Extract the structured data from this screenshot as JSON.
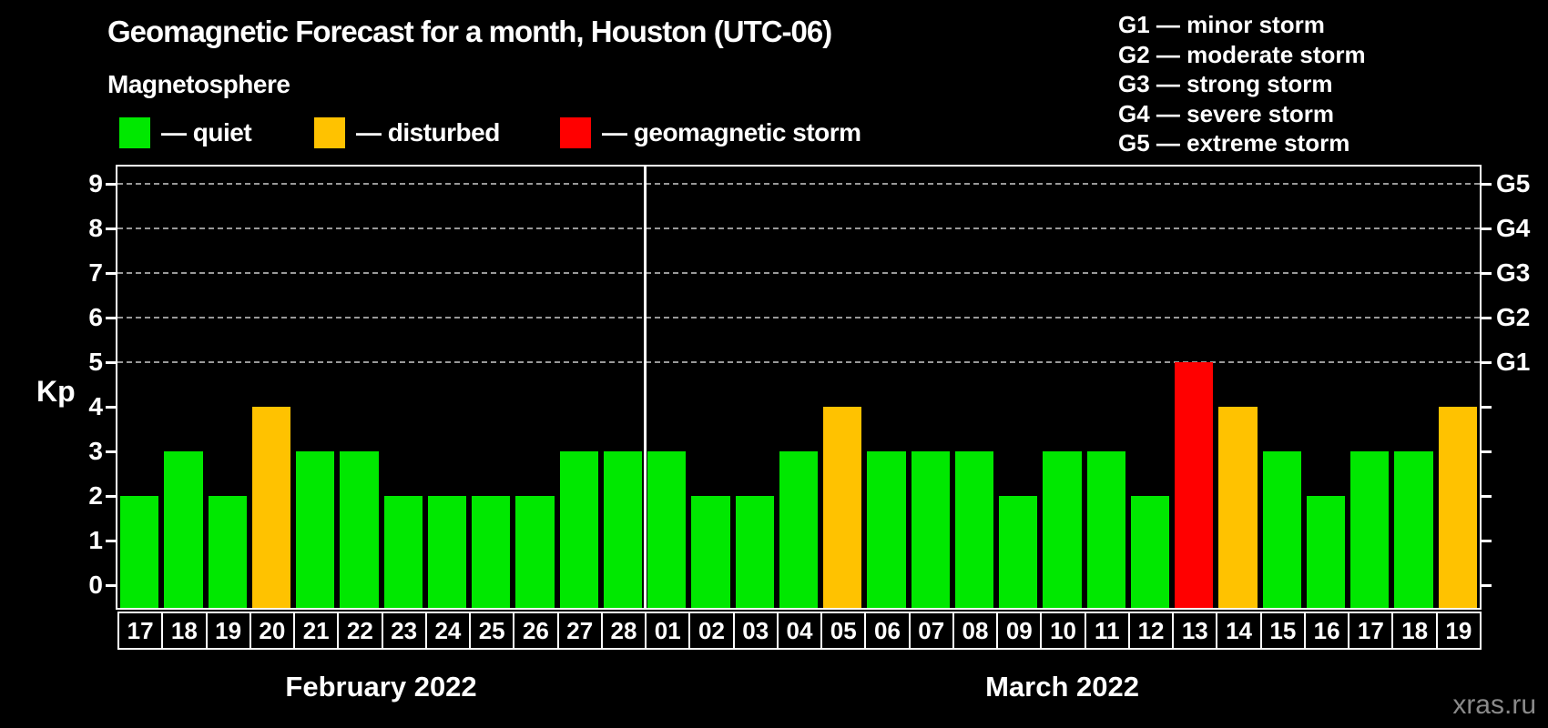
{
  "header": {
    "title": "Geomagnetic Forecast for a month, Houston (UTC-06)"
  },
  "magnetosphere": {
    "heading": "Magnetosphere",
    "items": [
      {
        "status": "quiet",
        "label": "— quiet",
        "color": "#00e800"
      },
      {
        "status": "disturbed",
        "label": "— disturbed",
        "color": "#ffc200"
      },
      {
        "status": "storm",
        "label": "— geomagnetic storm",
        "color": "#ff0000"
      }
    ]
  },
  "g_legend": [
    "G1 — minor storm",
    "G2 — moderate storm",
    "G3 — strong storm",
    "G4 — severe storm",
    "G5 — extreme storm"
  ],
  "axes": {
    "y_label": "Kp",
    "y_ticks": [
      0,
      1,
      2,
      3,
      4,
      5,
      6,
      7,
      8,
      9
    ],
    "grid_levels": [
      5,
      6,
      7,
      8,
      9
    ],
    "g_scale": [
      {
        "label": "G1",
        "kp": 5
      },
      {
        "label": "G2",
        "kp": 6
      },
      {
        "label": "G3",
        "kp": 7
      },
      {
        "label": "G4",
        "kp": 8
      },
      {
        "label": "G5",
        "kp": 9
      }
    ]
  },
  "months": [
    {
      "label": "February 2022",
      "days": [
        {
          "d": "17",
          "kp": 2,
          "status": "quiet"
        },
        {
          "d": "18",
          "kp": 3,
          "status": "quiet"
        },
        {
          "d": "19",
          "kp": 2,
          "status": "quiet"
        },
        {
          "d": "20",
          "kp": 4,
          "status": "disturbed"
        },
        {
          "d": "21",
          "kp": 3,
          "status": "quiet"
        },
        {
          "d": "22",
          "kp": 3,
          "status": "quiet"
        },
        {
          "d": "23",
          "kp": 2,
          "status": "quiet"
        },
        {
          "d": "24",
          "kp": 2,
          "status": "quiet"
        },
        {
          "d": "25",
          "kp": 2,
          "status": "quiet"
        },
        {
          "d": "26",
          "kp": 2,
          "status": "quiet"
        },
        {
          "d": "27",
          "kp": 3,
          "status": "quiet"
        },
        {
          "d": "28",
          "kp": 3,
          "status": "quiet"
        }
      ]
    },
    {
      "label": "March 2022",
      "days": [
        {
          "d": "01",
          "kp": 3,
          "status": "quiet"
        },
        {
          "d": "02",
          "kp": 2,
          "status": "quiet"
        },
        {
          "d": "03",
          "kp": 2,
          "status": "quiet"
        },
        {
          "d": "04",
          "kp": 3,
          "status": "quiet"
        },
        {
          "d": "05",
          "kp": 4,
          "status": "disturbed"
        },
        {
          "d": "06",
          "kp": 3,
          "status": "quiet"
        },
        {
          "d": "07",
          "kp": 3,
          "status": "quiet"
        },
        {
          "d": "08",
          "kp": 3,
          "status": "quiet"
        },
        {
          "d": "09",
          "kp": 2,
          "status": "quiet"
        },
        {
          "d": "10",
          "kp": 3,
          "status": "quiet"
        },
        {
          "d": "11",
          "kp": 3,
          "status": "quiet"
        },
        {
          "d": "12",
          "kp": 2,
          "status": "quiet"
        },
        {
          "d": "13",
          "kp": 5,
          "status": "storm"
        },
        {
          "d": "14",
          "kp": 4,
          "status": "disturbed"
        },
        {
          "d": "15",
          "kp": 3,
          "status": "quiet"
        },
        {
          "d": "16",
          "kp": 2,
          "status": "quiet"
        },
        {
          "d": "17",
          "kp": 3,
          "status": "quiet"
        },
        {
          "d": "18",
          "kp": 3,
          "status": "quiet"
        },
        {
          "d": "19",
          "kp": 4,
          "status": "disturbed"
        }
      ]
    }
  ],
  "watermark": "xras.ru",
  "chart_data": {
    "type": "bar",
    "title": "Geomagnetic Forecast for a month, Houston (UTC-06)",
    "xlabel": "",
    "ylabel": "Kp",
    "ylim": [
      0,
      9
    ],
    "grid": "dashed horizontal gridlines at Kp 5,6,7,8,9 only",
    "legend_position": "top-left (magnetosphere states), top-right (G storm scale)",
    "categories": [
      "Feb 17",
      "Feb 18",
      "Feb 19",
      "Feb 20",
      "Feb 21",
      "Feb 22",
      "Feb 23",
      "Feb 24",
      "Feb 25",
      "Feb 26",
      "Feb 27",
      "Feb 28",
      "Mar 01",
      "Mar 02",
      "Mar 03",
      "Mar 04",
      "Mar 05",
      "Mar 06",
      "Mar 07",
      "Mar 08",
      "Mar 09",
      "Mar 10",
      "Mar 11",
      "Mar 12",
      "Mar 13",
      "Mar 14",
      "Mar 15",
      "Mar 16",
      "Mar 17",
      "Mar 18",
      "Mar 19"
    ],
    "values": [
      2,
      3,
      2,
      4,
      3,
      3,
      2,
      2,
      2,
      2,
      3,
      3,
      3,
      2,
      2,
      3,
      4,
      3,
      3,
      3,
      2,
      3,
      3,
      2,
      5,
      4,
      3,
      2,
      3,
      3,
      4
    ],
    "statuses": [
      "quiet",
      "quiet",
      "quiet",
      "disturbed",
      "quiet",
      "quiet",
      "quiet",
      "quiet",
      "quiet",
      "quiet",
      "quiet",
      "quiet",
      "quiet",
      "quiet",
      "quiet",
      "quiet",
      "disturbed",
      "quiet",
      "quiet",
      "quiet",
      "quiet",
      "quiet",
      "quiet",
      "quiet",
      "storm",
      "disturbed",
      "quiet",
      "quiet",
      "quiet",
      "quiet",
      "disturbed"
    ],
    "color_map": {
      "quiet": "#00e800",
      "disturbed": "#ffc200",
      "storm": "#ff0000"
    },
    "right_axis": {
      "G1": 5,
      "G2": 6,
      "G3": 7,
      "G4": 8,
      "G5": 9
    }
  }
}
